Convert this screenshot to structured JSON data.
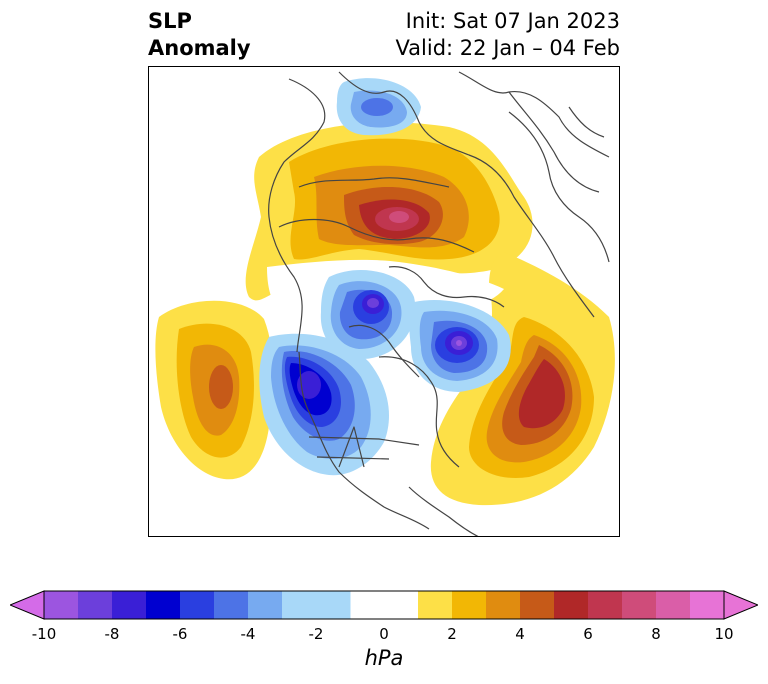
{
  "title": {
    "left_line1": "SLP",
    "left_line2": "Anomaly",
    "init": "Init: Sat 07 Jan 2023",
    "valid": "Valid: 22 Jan – 04 Feb"
  },
  "map": {
    "projection": "north-polar-stereographic",
    "variable": "sea level pressure anomaly",
    "features": [
      {
        "name": "siberia-high-anomaly",
        "sign": "positive",
        "peak_hpa": 8
      },
      {
        "name": "atlantic-high-anomaly",
        "sign": "positive",
        "peak_hpa": 6
      },
      {
        "name": "pacific-high-anomaly",
        "sign": "positive",
        "peak_hpa": 4
      },
      {
        "name": "arctic-low-anomaly",
        "sign": "negative",
        "peak_hpa": -8
      },
      {
        "name": "canada-low-anomaly",
        "sign": "negative",
        "peak_hpa": -7
      },
      {
        "name": "greenland-low-anomaly",
        "sign": "negative",
        "peak_hpa": -8
      },
      {
        "name": "scandinavia-low-anomaly",
        "sign": "negative",
        "peak_hpa": -3
      }
    ]
  },
  "colorbar": {
    "unit_label": "hPa",
    "ticks": [
      "-10",
      "-8",
      "-6",
      "-4",
      "-2",
      "0",
      "2",
      "4",
      "6",
      "8",
      "10"
    ],
    "tick_values": [
      -10,
      -8,
      -6,
      -4,
      -2,
      0,
      2,
      4,
      6,
      8,
      10
    ],
    "bins": [
      {
        "from": -10,
        "to": -9,
        "color": "#9c55e0"
      },
      {
        "from": -9,
        "to": -8,
        "color": "#6c3fdb"
      },
      {
        "from": -8,
        "to": -7,
        "color": "#3a1fd6"
      },
      {
        "from": -7,
        "to": -6,
        "color": "#0000d0"
      },
      {
        "from": -6,
        "to": -5,
        "color": "#2a3fe0"
      },
      {
        "from": -5,
        "to": -4,
        "color": "#4d73e6"
      },
      {
        "from": -4,
        "to": -3,
        "color": "#77aaf0"
      },
      {
        "from": -3,
        "to": -2,
        "color": "#a8d8f8"
      },
      {
        "from": -1,
        "to": 1,
        "color": "#ffffff"
      },
      {
        "from": 1,
        "to": 2,
        "color": "#fde047"
      },
      {
        "from": 2,
        "to": 3,
        "color": "#f2b705"
      },
      {
        "from": 3,
        "to": 4,
        "color": "#e08c10"
      },
      {
        "from": 4,
        "to": 5,
        "color": "#c65a18"
      },
      {
        "from": 5,
        "to": 6,
        "color": "#b02828"
      },
      {
        "from": 6,
        "to": 7,
        "color": "#c0364f"
      },
      {
        "from": 7,
        "to": 8,
        "color": "#cf4c7a"
      },
      {
        "from": 8,
        "to": 9,
        "color": "#da5ea8"
      },
      {
        "from": 9,
        "to": 10,
        "color": "#e773d6"
      }
    ],
    "under_color": "#d46be8",
    "over_color": "#e773d6"
  }
}
